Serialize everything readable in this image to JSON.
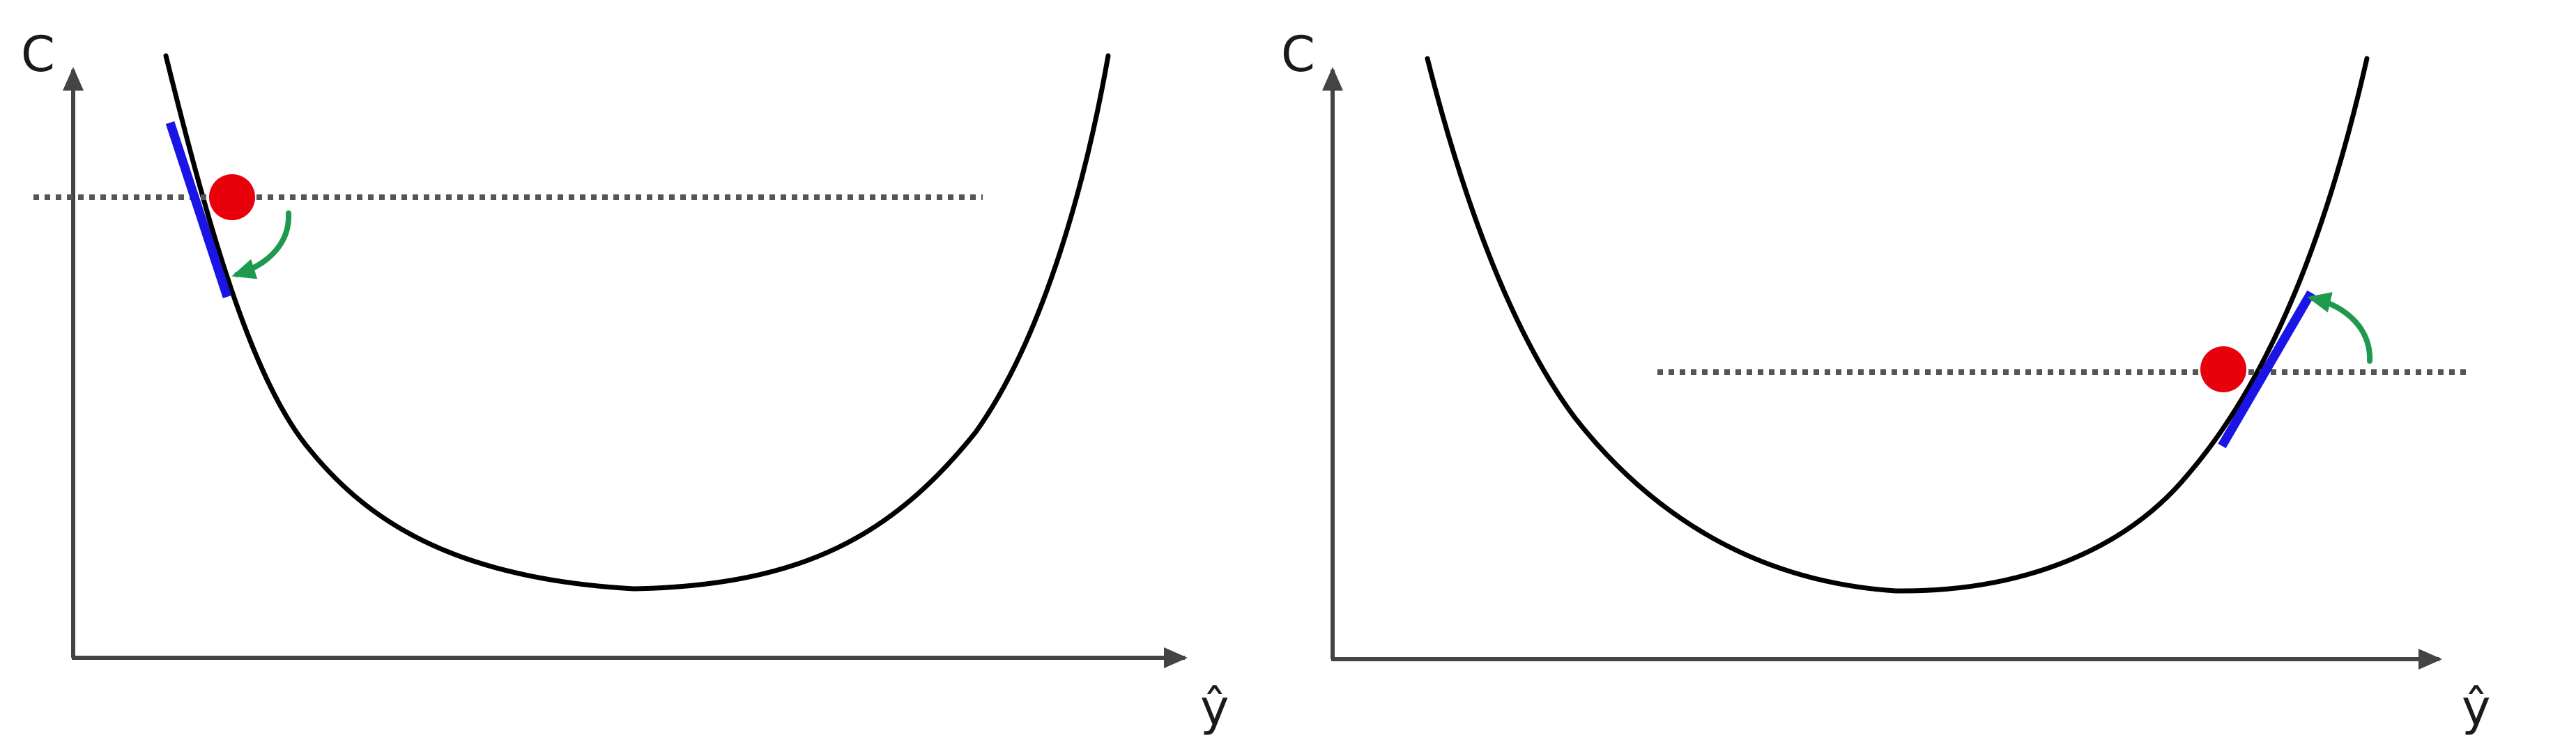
{
  "panels": [
    {
      "y_axis_label": "C",
      "x_axis_label": "ŷ"
    },
    {
      "y_axis_label": "C",
      "x_axis_label": "ŷ"
    }
  ],
  "colors": {
    "point": "#e8000b",
    "tangent": "#1a14e6",
    "arrow": "#1e9a4e",
    "curve": "#000000",
    "axis": "#444444"
  }
}
